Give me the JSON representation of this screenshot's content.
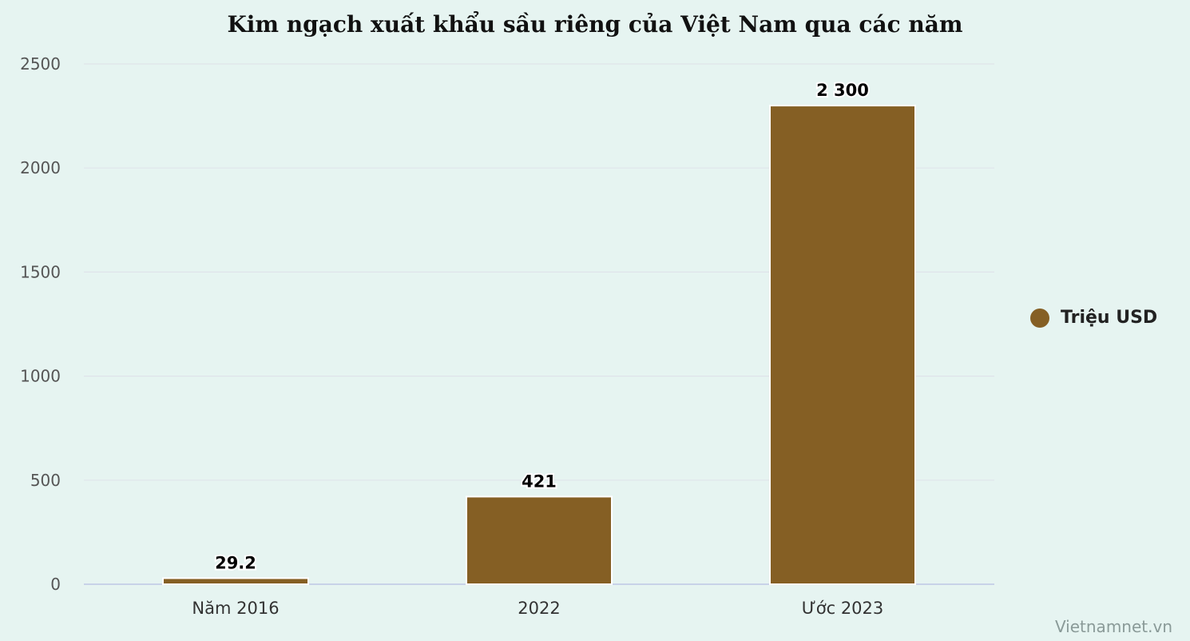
{
  "chart_data": {
    "type": "bar",
    "title": "Kim ngạch xuất khẩu sầu riêng của Việt Nam qua các năm",
    "categories": [
      "Năm 2016",
      "2022",
      "Ước 2023"
    ],
    "series": [
      {
        "name": "Triệu USD",
        "values": [
          29.2,
          421,
          2300
        ],
        "value_labels": [
          "29.2",
          "421",
          "2 300"
        ],
        "color": "#855f24"
      }
    ],
    "ylim": [
      0,
      2500
    ],
    "yticks": [
      0,
      500,
      1000,
      1500,
      2000,
      2500
    ],
    "grid": true,
    "legend_position": "right"
  },
  "colors": {
    "background": "#e6f4f1",
    "gridline": "#dfe3ea",
    "baseline": "#c8d2e8"
  },
  "credit": "Vietnamnet.vn"
}
